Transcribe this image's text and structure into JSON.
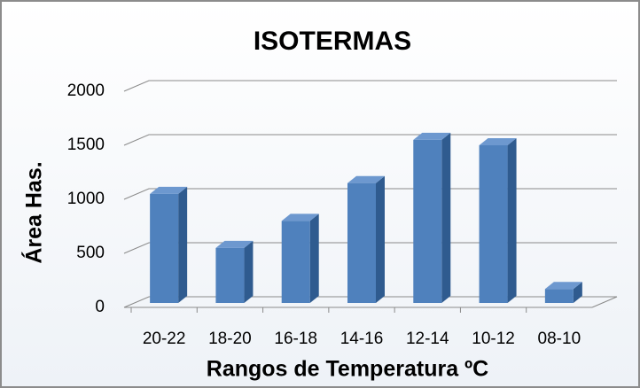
{
  "chart_data": {
    "type": "bar",
    "title": "ISOTERMAS",
    "x_label": "Rangos de Temperatura ºC",
    "y_label": "Área Has.",
    "categories": [
      "20-22",
      "18-20",
      "16-18",
      "14-16",
      "12-14",
      "10-12",
      "08-10"
    ],
    "values": [
      1050,
      550,
      800,
      1150,
      1550,
      1500,
      170
    ],
    "color": "#4f81bd",
    "ylim": [
      0,
      2000
    ],
    "yticks": [
      0,
      500,
      1000,
      1500,
      2000
    ],
    "grid": true
  }
}
